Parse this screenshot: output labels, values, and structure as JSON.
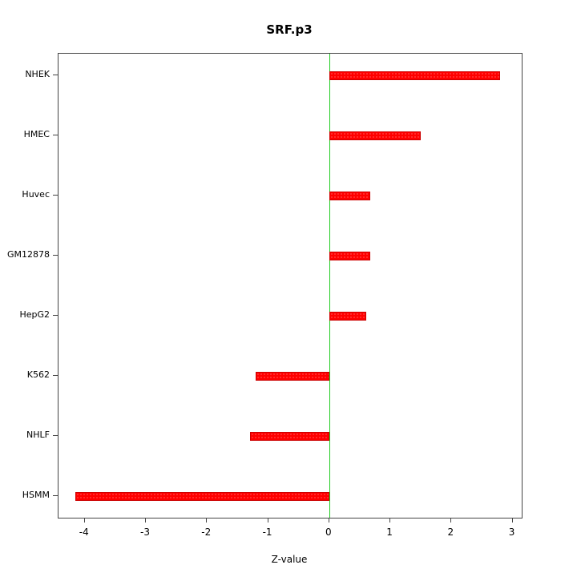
{
  "title": "SRF.p3",
  "x_axis_title": "Z-value",
  "chart_data": {
    "type": "bar",
    "orientation": "horizontal",
    "title": "SRF.p3",
    "xlabel": "Z-value",
    "ylabel": "",
    "categories": [
      "NHEK",
      "HMEC",
      "Huvec",
      "GM12878",
      "HepG2",
      "K562",
      "NHLF",
      "HSMM"
    ],
    "values": [
      2.8,
      1.5,
      0.67,
      0.67,
      0.6,
      -1.2,
      -1.3,
      -4.15
    ],
    "xlim": [
      -4.43,
      3.15
    ],
    "xticks": [
      -4,
      -3,
      -2,
      -1,
      0,
      1,
      2,
      3
    ],
    "grid": false,
    "legend": "none",
    "zero_line_value": 0,
    "zero_line_color": "#22cc22",
    "bar_color": "#ff0000",
    "bar_border_color": "#cc0000"
  }
}
